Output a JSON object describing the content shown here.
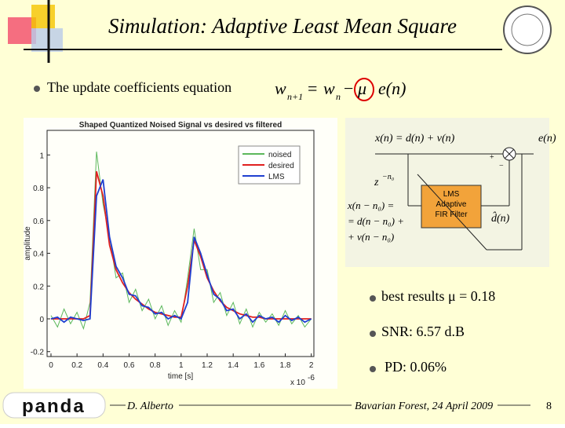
{
  "header": {
    "title": "Simulation: Adaptive Least Mean Square"
  },
  "bullet_equation": "The update coefficients equation",
  "equation": {
    "lhs": "w",
    "lhs_sub": "n+1",
    "eq": "=",
    "w": "w",
    "w_sub": "n",
    "minus": "−",
    "mu": "μ",
    "err": "e(n)"
  },
  "chart_data": {
    "type": "line",
    "title": "Shaped Quantized Noised Signal  vs desired vs filtered",
    "xlabel": "time [s]",
    "ylabel": "amplitude",
    "x_exponent": "x 10",
    "x_exponent_power": "-6",
    "x": [
      0,
      0.05,
      0.1,
      0.15,
      0.2,
      0.25,
      0.3,
      0.35,
      0.4,
      0.45,
      0.5,
      0.55,
      0.6,
      0.65,
      0.7,
      0.75,
      0.8,
      0.85,
      0.9,
      0.95,
      1,
      1.05,
      1.1,
      1.15,
      1.2,
      1.25,
      1.3,
      1.35,
      1.4,
      1.45,
      1.5,
      1.55,
      1.6,
      1.65,
      1.7,
      1.75,
      1.8,
      1.85,
      1.9,
      1.95,
      2
    ],
    "series": [
      {
        "name": "noised",
        "color": "#5cb85c",
        "values": [
          0.02,
          -0.05,
          0.06,
          -0.03,
          0.04,
          -0.06,
          0.1,
          1.02,
          0.7,
          0.5,
          0.25,
          0.28,
          0.1,
          0.18,
          0.05,
          0.12,
          0,
          0.08,
          -0.04,
          0.05,
          -0.02,
          0.25,
          0.55,
          0.3,
          0.3,
          0.1,
          0.16,
          0.02,
          0.1,
          -0.03,
          0.06,
          -0.05,
          0.04,
          -0.02,
          0.03,
          -0.04,
          0.05,
          -0.03,
          0.02,
          -0.05,
          0
        ]
      },
      {
        "name": "desired",
        "color": "#e02020",
        "values": [
          0,
          0,
          0,
          0,
          0,
          0,
          0.02,
          0.9,
          0.75,
          0.45,
          0.3,
          0.22,
          0.16,
          0.12,
          0.09,
          0.06,
          0.04,
          0.03,
          0.02,
          0.01,
          0.01,
          0.2,
          0.48,
          0.38,
          0.25,
          0.17,
          0.11,
          0.07,
          0.05,
          0.03,
          0.02,
          0.01,
          0.01,
          0,
          0,
          0,
          0,
          0,
          0,
          0,
          0
        ]
      },
      {
        "name": "LMS",
        "color": "#1f3fd0",
        "values": [
          0,
          0.01,
          -0.02,
          0.01,
          0,
          -0.01,
          0,
          0.75,
          0.85,
          0.5,
          0.32,
          0.25,
          0.15,
          0.14,
          0.08,
          0.07,
          0.03,
          0.04,
          0,
          0.02,
          0,
          0.1,
          0.5,
          0.4,
          0.27,
          0.15,
          0.12,
          0.05,
          0.06,
          0,
          0.03,
          -0.02,
          0.02,
          0,
          0.01,
          -0.02,
          0.02,
          -0.01,
          0.01,
          -0.02,
          0
        ]
      }
    ],
    "xlim": [
      -0.03,
      2.02
    ],
    "ylim": [
      -0.23,
      1.15
    ],
    "xticks": [
      0,
      0.2,
      0.4,
      0.6,
      0.8,
      1,
      1.2,
      1.4,
      1.6,
      1.8,
      2
    ],
    "yticks": [
      -0.2,
      0,
      0.2,
      0.4,
      0.6,
      0.8,
      1
    ],
    "legend": "upper right"
  },
  "diagram": {
    "input": "x(n) = d(n) + v(n)",
    "error": "e(n)",
    "plus": "+",
    "minus": "−",
    "delay": "z",
    "delay_power": "−n₀",
    "delayed": [
      "x(n − n₀) =",
      "= d(n − n₀) +",
      "+ v(n − n₀)"
    ],
    "filter": [
      "LMS",
      "Adaptive",
      "FIR Filter"
    ],
    "output": "d̂(n)"
  },
  "bullets": [
    "best results μ = 0.18",
    "SNR:  6.57 d.B",
    "PD:   0.06%"
  ],
  "footer": {
    "logo": "panda",
    "author": "D. Alberto",
    "venue": "Bavarian Forest, 24 April 2009",
    "page": "8"
  }
}
